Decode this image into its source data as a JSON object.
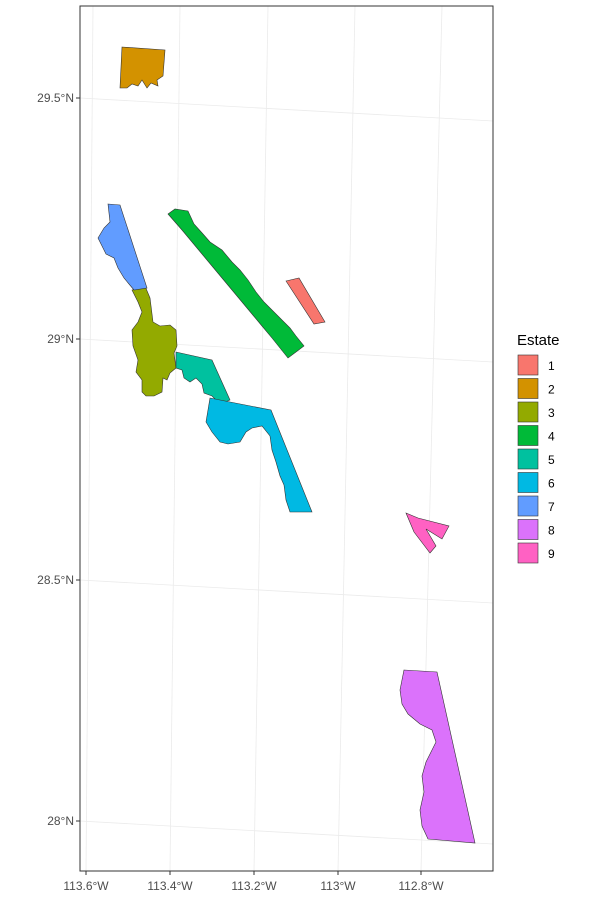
{
  "legend": {
    "title": "Estate",
    "items": [
      {
        "label": "1",
        "color": "#F8766D"
      },
      {
        "label": "2",
        "color": "#D39200"
      },
      {
        "label": "3",
        "color": "#93AA00"
      },
      {
        "label": "4",
        "color": "#00BA38"
      },
      {
        "label": "5",
        "color": "#00C19F"
      },
      {
        "label": "6",
        "color": "#00B9E3"
      },
      {
        "label": "7",
        "color": "#619CFF"
      },
      {
        "label": "8",
        "color": "#DB72FB"
      },
      {
        "label": "9",
        "color": "#FF61C3"
      }
    ]
  },
  "axes": {
    "x_ticks": [
      "113.6°W",
      "113.4°W",
      "113.2°W",
      "113°W",
      "112.8°W"
    ],
    "y_ticks": [
      "29.5°N",
      "29°N",
      "28.5°N",
      "28°N"
    ]
  }
}
